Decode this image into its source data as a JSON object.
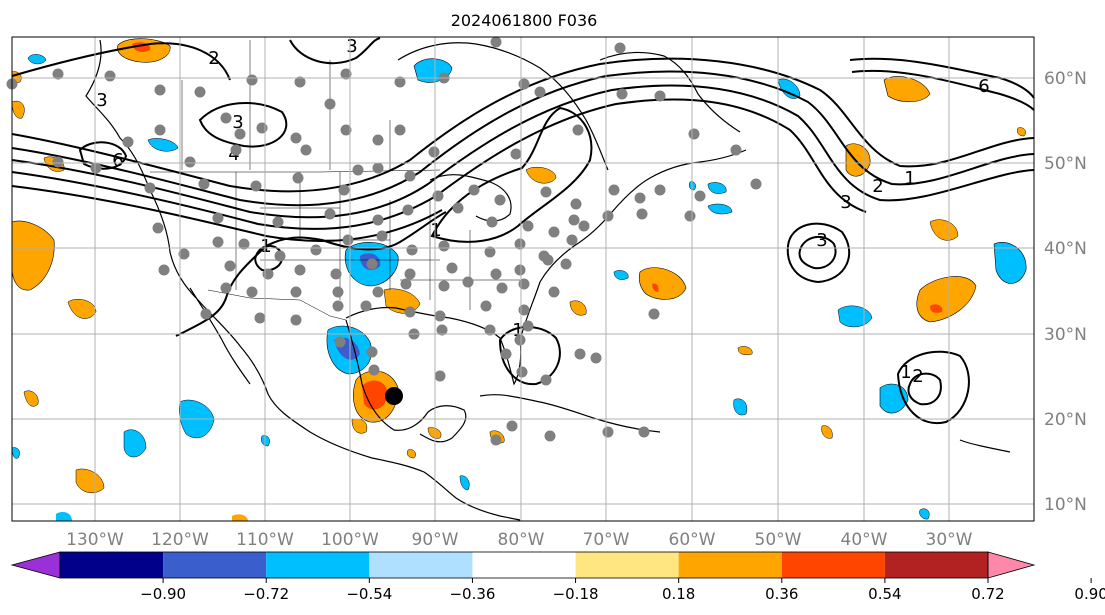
{
  "title": "2024061800 F036",
  "lon_labels": [
    "130°W",
    "120°W",
    "110°W",
    "100°W",
    "90°W",
    "80°W",
    "70°W",
    "60°W",
    "50°W",
    "40°W",
    "30°W"
  ],
  "lat_labels": [
    "60°N",
    "50°N",
    "40°N",
    "30°N",
    "20°N",
    "10°N"
  ],
  "colorbar": {
    "ticks": [
      "−0.90",
      "−0.72",
      "−0.54",
      "−0.36",
      "−0.18",
      "0.18",
      "0.36",
      "0.54",
      "0.72",
      "0.90"
    ],
    "colors": [
      "#9b30d9",
      "#00008b",
      "#3a5fcd",
      "#00bfff",
      "#b0e0ff",
      "#ffffff",
      "#ffe680",
      "#ffa500",
      "#ff4500",
      "#b22222",
      "#ff88aa"
    ]
  },
  "contour_labels": [
    "3",
    "3",
    "3",
    "4",
    "6",
    "3",
    "2",
    "1",
    "6",
    "3",
    "2",
    "1",
    "1",
    "1",
    "1",
    "2"
  ],
  "colors": {
    "land_line": "#000000",
    "grid": "#b0b0b0",
    "station": "#808080",
    "marker": "#000000"
  }
}
